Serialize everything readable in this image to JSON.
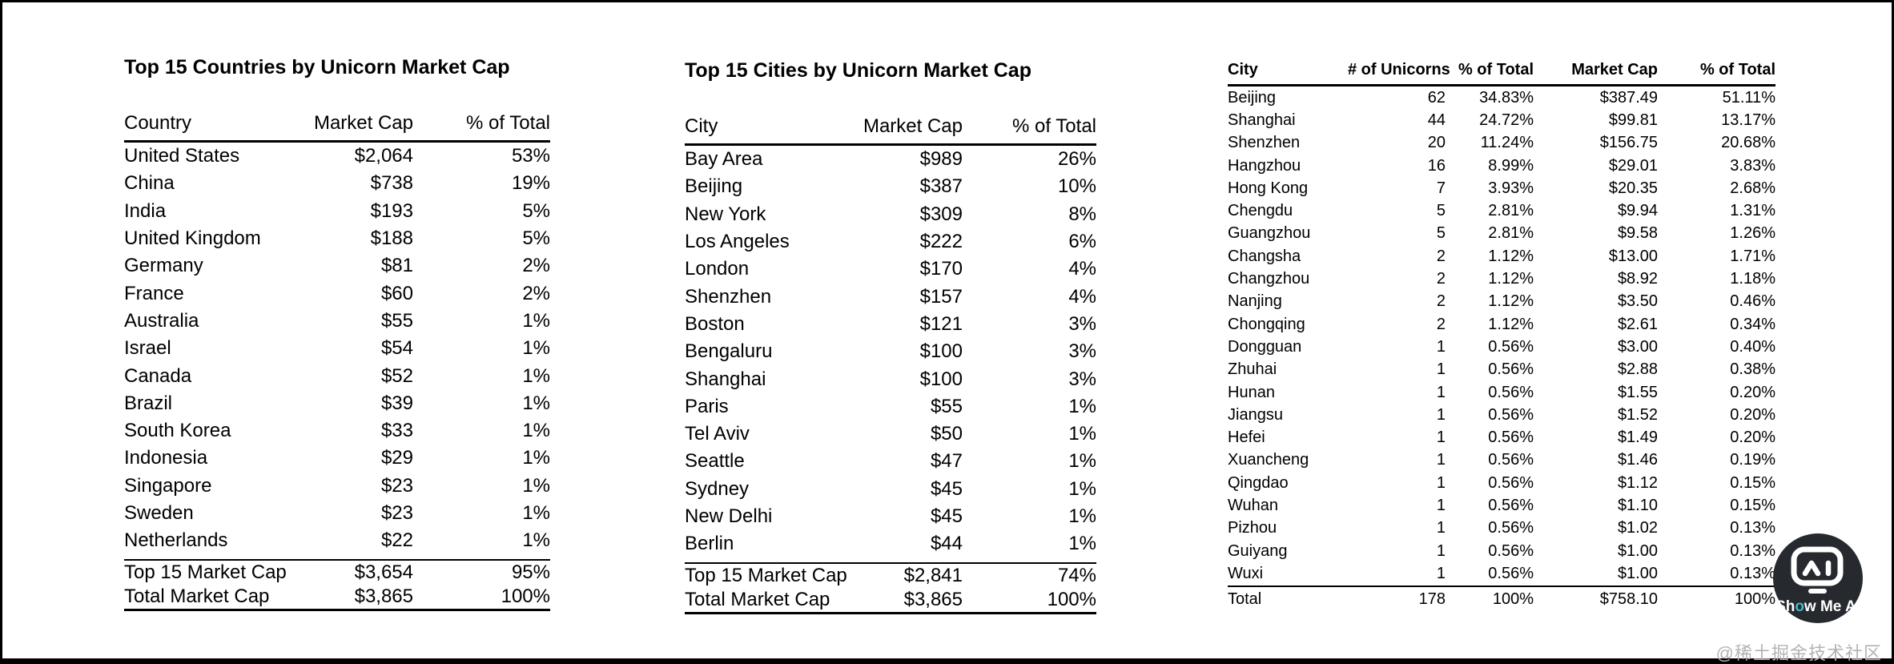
{
  "watermark": {
    "text": "@稀土掘金技术社区"
  },
  "logo": {
    "label": "Show Me AI",
    "text_pre": "Sh",
    "text_o": "o",
    "text_post": "w Me AI",
    "circle_color": "#26292e",
    "accent_color": "#45b8c9",
    "icon": "robot-screen-icon"
  },
  "chart_data": [
    {
      "type": "table",
      "title": "Top 15 Countries by Unicorn Market Cap",
      "columns": [
        "Country",
        "Market Cap",
        "% of Total"
      ],
      "rows": [
        [
          "United States",
          "$2,064",
          "53%"
        ],
        [
          "China",
          "$738",
          "19%"
        ],
        [
          "India",
          "$193",
          "5%"
        ],
        [
          "United Kingdom",
          "$188",
          "5%"
        ],
        [
          "Germany",
          "$81",
          "2%"
        ],
        [
          "France",
          "$60",
          "2%"
        ],
        [
          "Australia",
          "$55",
          "1%"
        ],
        [
          "Israel",
          "$54",
          "1%"
        ],
        [
          "Canada",
          "$52",
          "1%"
        ],
        [
          "Brazil",
          "$39",
          "1%"
        ],
        [
          "South Korea",
          "$33",
          "1%"
        ],
        [
          "Indonesia",
          "$29",
          "1%"
        ],
        [
          "Singapore",
          "$23",
          "1%"
        ],
        [
          "Sweden",
          "$23",
          "1%"
        ],
        [
          "Netherlands",
          "$22",
          "1%"
        ]
      ],
      "totals": [
        [
          "Top 15 Market Cap",
          "$3,654",
          "95%"
        ],
        [
          "Total Market Cap",
          "$3,865",
          "100%"
        ]
      ]
    },
    {
      "type": "table",
      "title": "Top 15 Cities by Unicorn Market Cap",
      "columns": [
        "City",
        "Market Cap",
        "% of Total"
      ],
      "rows": [
        [
          "Bay Area",
          "$989",
          "26%"
        ],
        [
          "Beijing",
          "$387",
          "10%"
        ],
        [
          "New York",
          "$309",
          "8%"
        ],
        [
          "Los Angeles",
          "$222",
          "6%"
        ],
        [
          "London",
          "$170",
          "4%"
        ],
        [
          "Shenzhen",
          "$157",
          "4%"
        ],
        [
          "Boston",
          "$121",
          "3%"
        ],
        [
          "Bengaluru",
          "$100",
          "3%"
        ],
        [
          "Shanghai",
          "$100",
          "3%"
        ],
        [
          "Paris",
          "$55",
          "1%"
        ],
        [
          "Tel Aviv",
          "$50",
          "1%"
        ],
        [
          "Seattle",
          "$47",
          "1%"
        ],
        [
          "Sydney",
          "$45",
          "1%"
        ],
        [
          "New Delhi",
          "$45",
          "1%"
        ],
        [
          "Berlin",
          "$44",
          "1%"
        ]
      ],
      "totals": [
        [
          "Top 15 Market Cap",
          "$2,841",
          "74%"
        ],
        [
          "Total Market Cap",
          "$3,865",
          "100%"
        ]
      ]
    },
    {
      "type": "table",
      "title": "",
      "columns": [
        "City",
        "# of Unicorns",
        "% of Total",
        "Market Cap",
        "% of Total"
      ],
      "rows": [
        [
          "Beijing",
          "62",
          "34.83%",
          "$387.49",
          "51.11%"
        ],
        [
          "Shanghai",
          "44",
          "24.72%",
          "$99.81",
          "13.17%"
        ],
        [
          "Shenzhen",
          "20",
          "11.24%",
          "$156.75",
          "20.68%"
        ],
        [
          "Hangzhou",
          "16",
          "8.99%",
          "$29.01",
          "3.83%"
        ],
        [
          "Hong Kong",
          "7",
          "3.93%",
          "$20.35",
          "2.68%"
        ],
        [
          "Chengdu",
          "5",
          "2.81%",
          "$9.94",
          "1.31%"
        ],
        [
          "Guangzhou",
          "5",
          "2.81%",
          "$9.58",
          "1.26%"
        ],
        [
          "Changsha",
          "2",
          "1.12%",
          "$13.00",
          "1.71%"
        ],
        [
          "Changzhou",
          "2",
          "1.12%",
          "$8.92",
          "1.18%"
        ],
        [
          "Nanjing",
          "2",
          "1.12%",
          "$3.50",
          "0.46%"
        ],
        [
          "Chongqing",
          "2",
          "1.12%",
          "$2.61",
          "0.34%"
        ],
        [
          "Dongguan",
          "1",
          "0.56%",
          "$3.00",
          "0.40%"
        ],
        [
          "Zhuhai",
          "1",
          "0.56%",
          "$2.88",
          "0.38%"
        ],
        [
          "Hunan",
          "1",
          "0.56%",
          "$1.55",
          "0.20%"
        ],
        [
          "Jiangsu",
          "1",
          "0.56%",
          "$1.52",
          "0.20%"
        ],
        [
          "Hefei",
          "1",
          "0.56%",
          "$1.49",
          "0.20%"
        ],
        [
          "Xuancheng",
          "1",
          "0.56%",
          "$1.46",
          "0.19%"
        ],
        [
          "Qingdao",
          "1",
          "0.56%",
          "$1.12",
          "0.15%"
        ],
        [
          "Wuhan",
          "1",
          "0.56%",
          "$1.10",
          "0.15%"
        ],
        [
          "Pizhou",
          "1",
          "0.56%",
          "$1.02",
          "0.13%"
        ],
        [
          "Guiyang",
          "1",
          "0.56%",
          "$1.00",
          "0.13%"
        ],
        [
          "Wuxi",
          "1",
          "0.56%",
          "$1.00",
          "0.13%"
        ]
      ],
      "totals": [
        [
          "Total",
          "178",
          "100%",
          "$758.10",
          "100%"
        ]
      ]
    }
  ]
}
